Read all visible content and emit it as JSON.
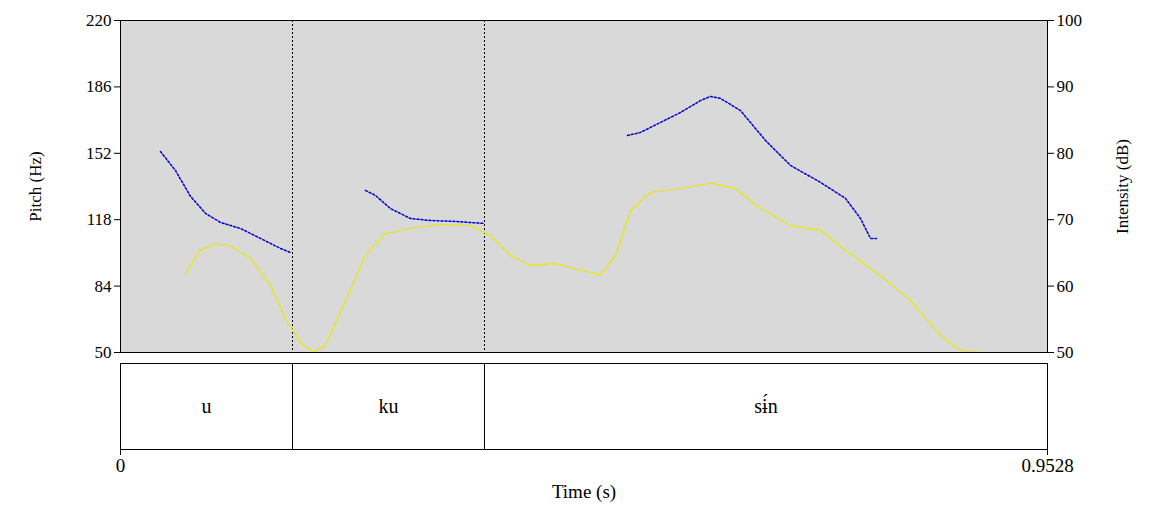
{
  "chart_data": {
    "type": "spectrogram",
    "x_label": "Time (s)",
    "xlim": [
      0,
      0.9528
    ],
    "xticks": [
      0,
      0.9528
    ],
    "y_label": "Pitch (Hz)",
    "ylim": [
      50,
      220
    ],
    "yticks": [
      50,
      84,
      118,
      152,
      186,
      220
    ],
    "y2_label": "Intensity (dB)",
    "y2lim": [
      50,
      100
    ],
    "y2ticks": [
      50,
      60,
      70,
      80,
      90,
      100
    ],
    "series": [
      {
        "color": "#0000cc",
        "line_style": "dotted",
        "axis": "y",
        "x": [
          0.0411,
          0.0565,
          0.072,
          0.0874,
          0.1028,
          0.1233,
          0.1439,
          0.1644,
          0.1747,
          null,
          0.2518,
          0.2621,
          0.2775,
          0.2981,
          0.3186,
          0.3443,
          0.3731,
          null,
          0.5211,
          0.5345,
          0.555,
          0.5756,
          0.5961,
          0.6064,
          0.6167,
          0.6372,
          0.6629,
          0.6886,
          0.7195,
          0.7452,
          0.7606,
          0.7709,
          0.777
        ],
        "values": [
          152.9,
          143.2,
          129.9,
          121.2,
          116.6,
          113.5,
          108.4,
          103.3,
          101.2,
          null,
          133.0,
          130.4,
          123.7,
          118.6,
          117.6,
          117.1,
          116.1,
          null,
          161.1,
          162.7,
          167.8,
          172.9,
          179.0,
          181.1,
          180.1,
          173.9,
          158.6,
          145.8,
          137.1,
          128.9,
          118.6,
          108.4,
          108.4
        ]
      },
      {
        "color": "#e8e800",
        "line_style": "dotted",
        "axis": "y2",
        "x": [
          0.0668,
          0.0822,
          0.0976,
          0.1131,
          0.1336,
          0.1542,
          0.1696,
          0.185,
          0.1984,
          0.2107,
          0.2313,
          0.2518,
          0.2724,
          0.2981,
          0.3289,
          0.3597,
          0.3803,
          0.4009,
          0.4214,
          0.4471,
          0.4728,
          0.4934,
          0.5088,
          0.5242,
          0.5447,
          0.5756,
          0.6064,
          0.6321,
          0.6578,
          0.6886,
          0.7195,
          0.7452,
          0.7811,
          0.8119,
          0.8428,
          0.8633,
          0.8839
        ],
        "values": [
          61.9,
          65.4,
          66.4,
          66.1,
          64.2,
          60.1,
          55.1,
          51.5,
          50.0,
          51.1,
          57.8,
          64.6,
          67.9,
          68.7,
          69.3,
          69.1,
          67.6,
          64.6,
          63.1,
          63.4,
          62.4,
          61.7,
          64.6,
          71.4,
          74.1,
          74.7,
          75.5,
          74.7,
          71.7,
          69.1,
          68.4,
          65.4,
          61.6,
          57.8,
          52.6,
          50.3,
          50.0
        ]
      }
    ],
    "segments": [
      {
        "label": "u",
        "start": 0,
        "end": 0.1768
      },
      {
        "label": "ku",
        "start": 0.1768,
        "end": 0.3741
      },
      {
        "label": "sɨ́n",
        "start": 0.3741,
        "end": 0.9528
      }
    ]
  }
}
